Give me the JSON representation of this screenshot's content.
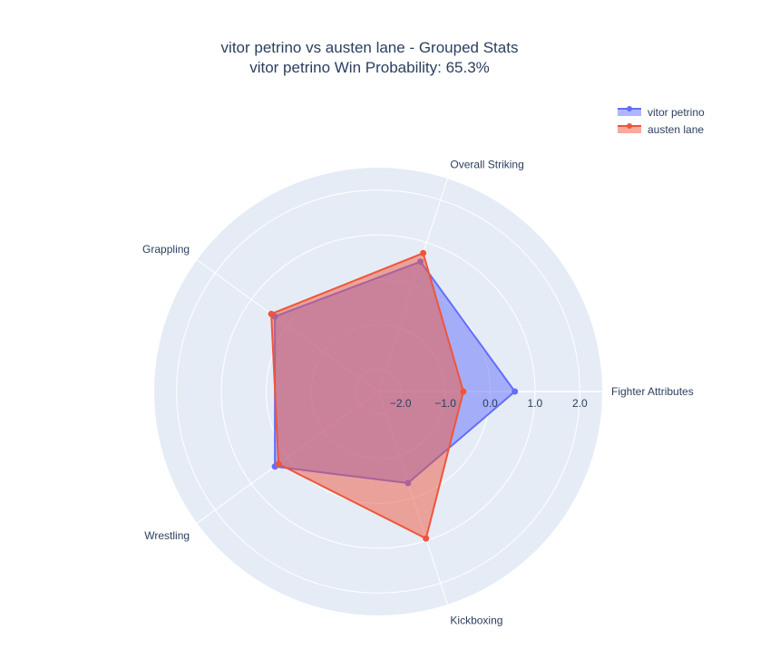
{
  "chart_data": {
    "type": "radar",
    "title": "vitor petrino vs austen lane - Grouped Stats",
    "subtitle": "vitor petrino Win Probability: 65.3%",
    "axes": [
      "Fighter Attributes",
      "Overall Striking",
      "Grappling",
      "Wrestling",
      "Kickboxing"
    ],
    "radial_range": [
      -2.5,
      2.5
    ],
    "radial_ticks": [
      -2.0,
      -1.0,
      0.0,
      1.0,
      2.0
    ],
    "radial_tick_labels": [
      "−2.0",
      "−1.0",
      "0.0",
      "1.0",
      "2.0"
    ],
    "series": [
      {
        "name": "vitor petrino",
        "color": "#636efa",
        "values": [
          0.55,
          0.55,
          0.35,
          0.35,
          -0.35
        ]
      },
      {
        "name": "austen lane",
        "color": "#ef553b",
        "values": [
          -0.6,
          0.75,
          0.45,
          0.25,
          0.95
        ]
      }
    ],
    "legend_position": "top-right"
  }
}
